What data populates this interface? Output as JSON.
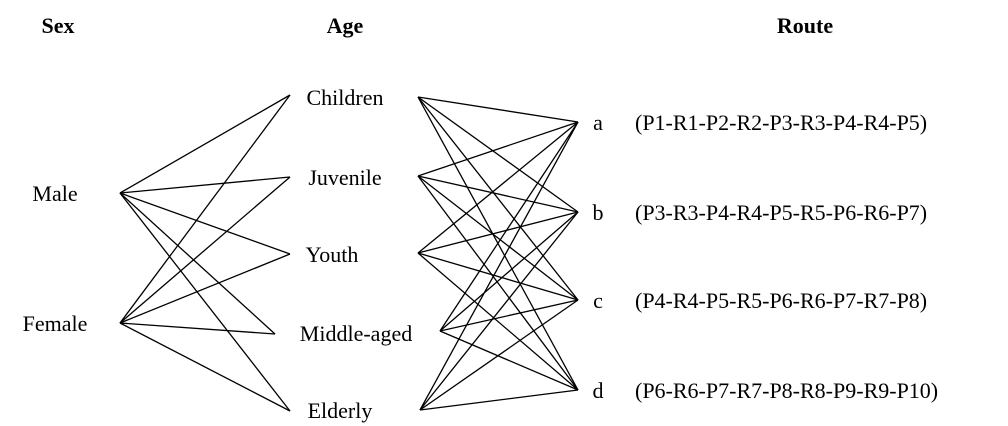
{
  "headers": {
    "sex": "Sex",
    "age": "Age",
    "route": "Route"
  },
  "sexes": [
    "Male",
    "Female"
  ],
  "ages": [
    "Children",
    "Juvenile",
    "Youth",
    "Middle-aged",
    "Elderly"
  ],
  "routes": [
    {
      "label": "a",
      "path": "(P1-R1-P2-R2-P3-R3-P4-R4-P5)"
    },
    {
      "label": "b",
      "path": "(P3-R3-P4-R4-P5-R5-P6-R6-P7)"
    },
    {
      "label": "c",
      "path": "(P4-R4-P5-R5-P6-R6-P7-R7-P8)"
    },
    {
      "label": "d",
      "path": "(P6-R6-P7-R7-P8-R8-P9-R9-P10)"
    }
  ]
}
